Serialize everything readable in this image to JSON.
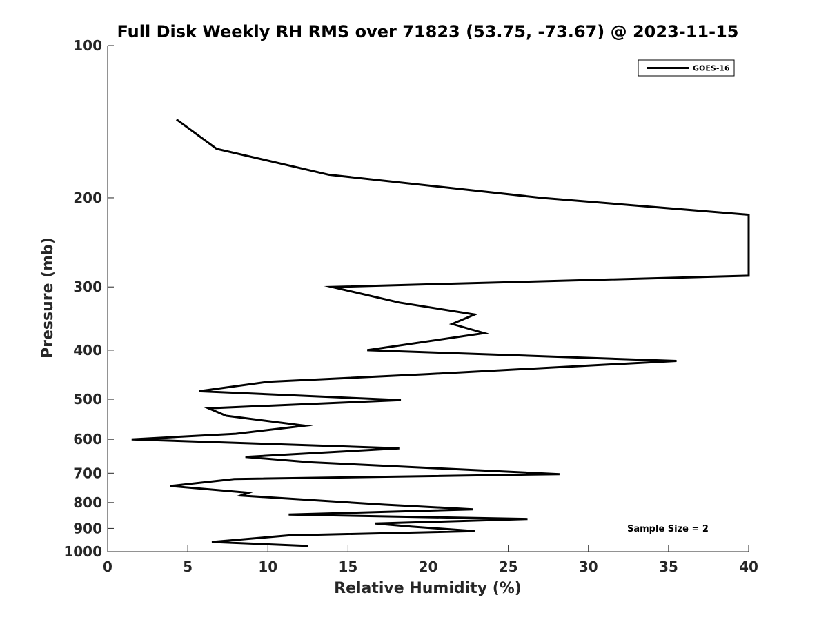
{
  "chart_data": {
    "type": "line",
    "title": "Full Disk Weekly RH RMS over 71823 (53.75, -73.67) @ 2023-11-15",
    "xlabel": "Relative Humidity (%)",
    "ylabel": "Pressure (mb)",
    "xlim": [
      0,
      40
    ],
    "ylim": [
      100,
      1000
    ],
    "yscale": "log",
    "y_reversed": true,
    "x_ticks": [
      "0",
      "5",
      "10",
      "15",
      "20",
      "25",
      "30",
      "35",
      "40"
    ],
    "y_ticks": [
      "100",
      "200",
      "300",
      "400",
      "500",
      "600",
      "700",
      "800",
      "900",
      "1000"
    ],
    "grid": false,
    "legend_position": "top-right",
    "annotation": "Sample Size = 2",
    "series": [
      {
        "name": "GOES-16",
        "color": "#000000",
        "x": [
          4.3,
          6.8,
          13.8,
          27.1,
          40,
          40,
          14.0,
          18.2,
          22.9,
          21.5,
          23.5,
          16.2,
          35.5,
          20.0,
          10.0,
          5.7,
          18.3,
          6.3,
          7.4,
          12.3,
          8.0,
          1.5,
          18.2,
          8.6,
          12.6,
          28.2,
          7.9,
          3.9,
          8.8,
          8.3,
          17.3,
          22.8,
          11.3,
          26.2,
          16.7,
          19.0,
          22.9,
          11.3,
          6.5,
          12.5
        ],
        "y": [
          140,
          160,
          180,
          200,
          216,
          285,
          300,
          322,
          340,
          355,
          370,
          400,
          420,
          446,
          462,
          482,
          502,
          521,
          539,
          564,
          585,
          600,
          625,
          650,
          666,
          703,
          719,
          742,
          765,
          775,
          808,
          825,
          845,
          862,
          880,
          893,
          911,
          929,
          957,
          975
        ]
      }
    ]
  }
}
